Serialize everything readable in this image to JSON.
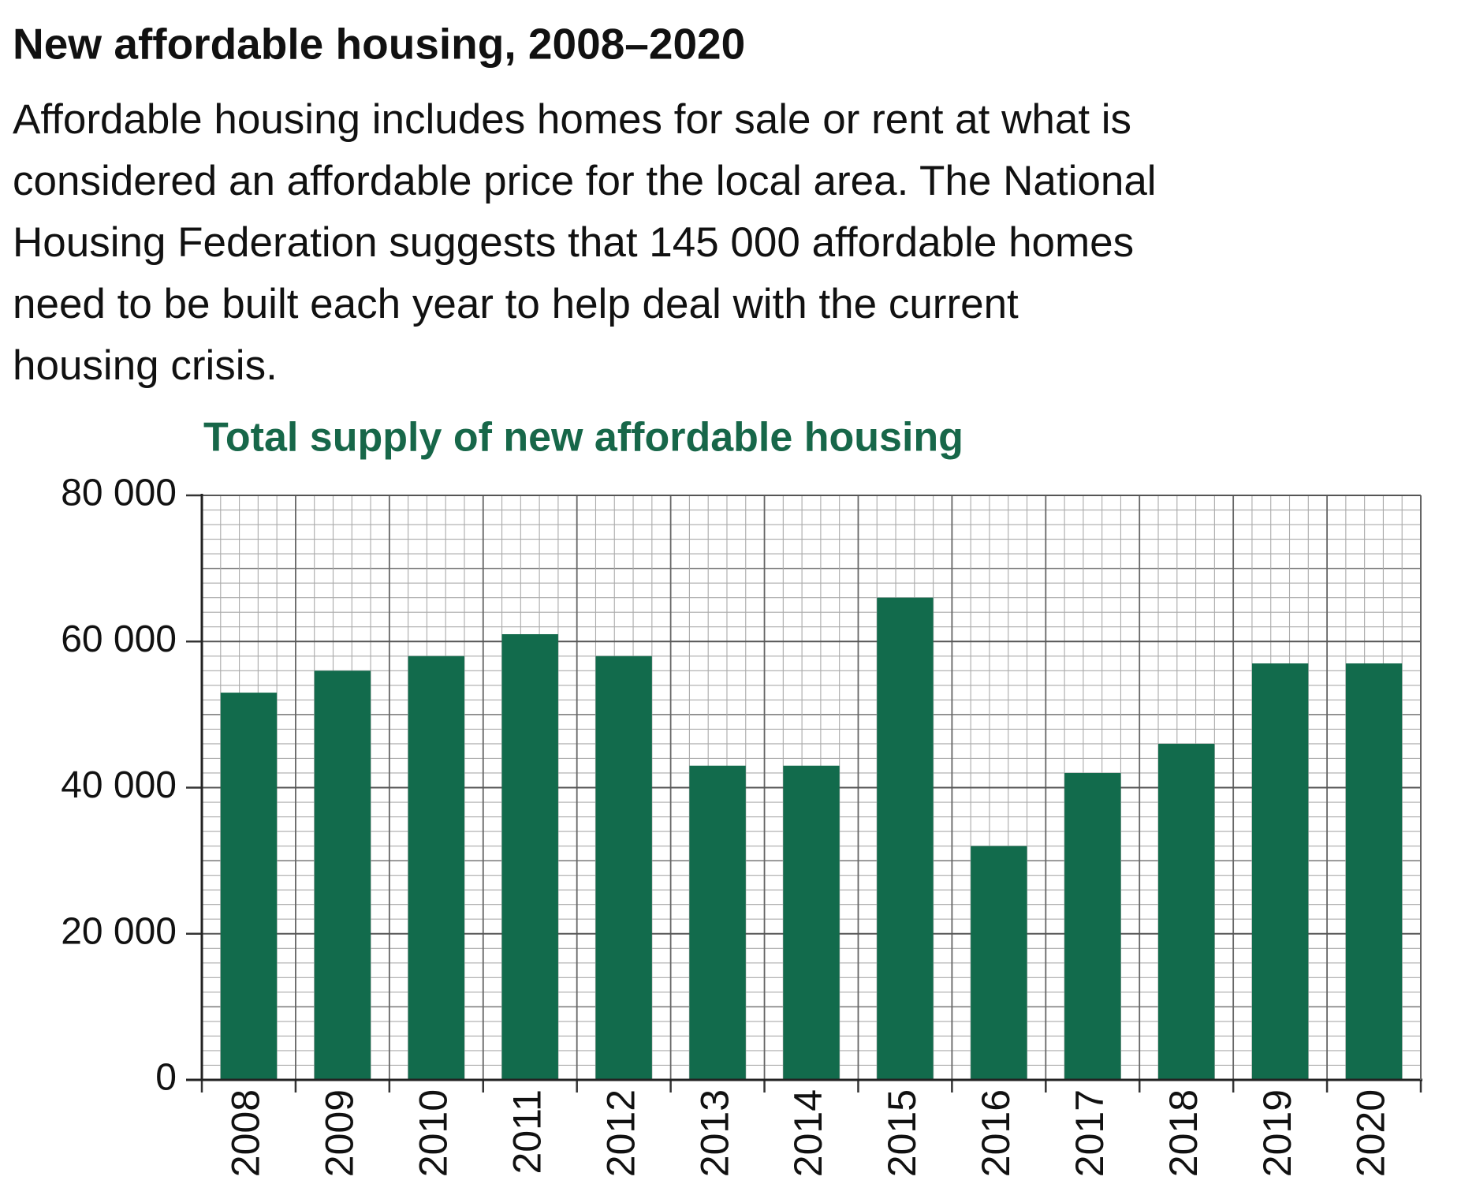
{
  "header": {
    "title": "New affordable housing, 2008–2020",
    "paragraph_lines": [
      "Affordable housing includes homes for sale or rent at what is",
      "considered an affordable price for the local area. The National",
      "Housing Federation suggests that 145 000 affordable homes",
      "need to be built  each year to help deal with the current",
      "housing crisis."
    ]
  },
  "chart_data": {
    "type": "bar",
    "title": "Total supply of new affordable housing",
    "categories": [
      "2008",
      "2009",
      "2010",
      "2011",
      "2012",
      "2013",
      "2014",
      "2015",
      "2016",
      "2017",
      "2018",
      "2019",
      "2020"
    ],
    "values": [
      53000,
      56000,
      58000,
      61000,
      58000,
      43000,
      43000,
      66000,
      32000,
      42000,
      46000,
      57000,
      57000
    ],
    "color": "#126b4c",
    "ylim": [
      0,
      80000
    ],
    "yticks": [
      0,
      {
        "value": 20000,
        "label": "20 000"
      },
      {
        "value": 40000,
        "label": "40 000"
      },
      {
        "value": 60000,
        "label": "60 000"
      },
      {
        "value": 80000,
        "label": "80 000"
      }
    ],
    "grid": true
  }
}
